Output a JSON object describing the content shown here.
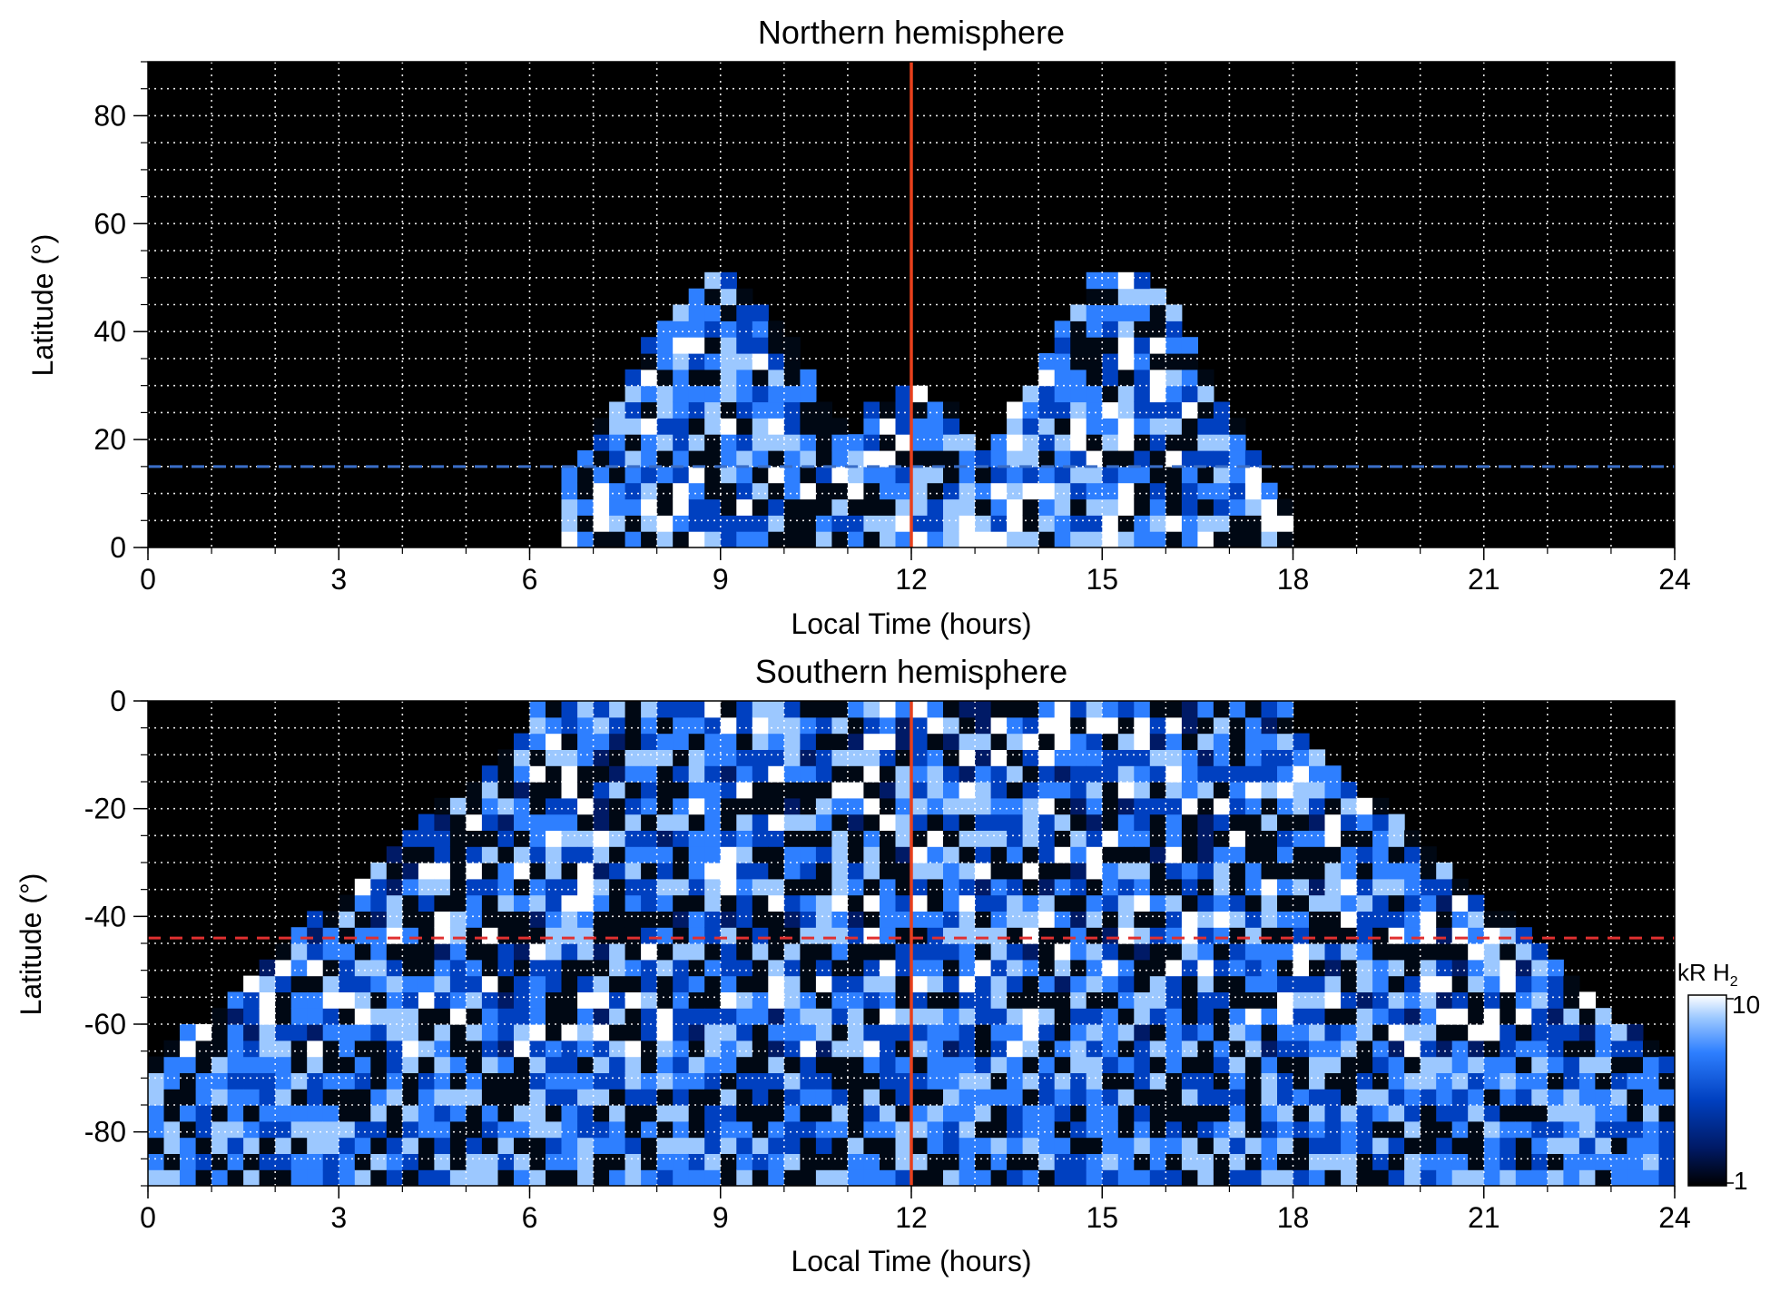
{
  "chart_data": [
    {
      "type": "heatmap",
      "title": "Northern hemisphere",
      "xlabel": "Local Time (hours)",
      "ylabel": "Latitude (°)",
      "xlim": [
        0,
        24
      ],
      "ylim": [
        0,
        90
      ],
      "xticks": [
        "0",
        "3",
        "6",
        "9",
        "12",
        "15",
        "18",
        "21",
        "24"
      ],
      "yticks": [
        "0",
        "20",
        "40",
        "60",
        "80"
      ],
      "grid": true,
      "noon_line_x": 12,
      "reference_latitude": 15,
      "reference_color": "#3a6ec8",
      "emission_region": {
        "x_range": [
          6.5,
          18
        ],
        "lobes": [
          {
            "x_center": 9,
            "max_latitude": 50
          },
          {
            "x_center": 15.5,
            "max_latitude": 52
          }
        ]
      }
    },
    {
      "type": "heatmap",
      "title": "Southern hemisphere",
      "xlabel": "Local Time (hours)",
      "ylabel": "Latitude (°)",
      "xlim": [
        0,
        24
      ],
      "ylim": [
        -90,
        0
      ],
      "xticks": [
        "0",
        "3",
        "6",
        "9",
        "12",
        "15",
        "18",
        "21",
        "24"
      ],
      "yticks": [
        "0",
        "-20",
        "-40",
        "-60",
        "-80"
      ],
      "grid": true,
      "noon_line_x": 12,
      "reference_latitude": -44,
      "reference_color": "#e03030",
      "emission_region": {
        "x_range": [
          0,
          24
        ],
        "upper_envelope_x_range": [
          6,
          18
        ],
        "polar_band_latitude": [
          -90,
          -65
        ]
      }
    }
  ],
  "colorbar": {
    "label": "kR H",
    "label_subscript": "2",
    "min_label": "1",
    "max_label": "10",
    "scale": "log",
    "colors": [
      "#000000",
      "#001a66",
      "#0040c0",
      "#2e7fff",
      "#9cc8ff",
      "#ffffff"
    ]
  },
  "colors": {
    "background": "#000000",
    "noon_line": "#e8401c",
    "grid": "#ffffff"
  }
}
